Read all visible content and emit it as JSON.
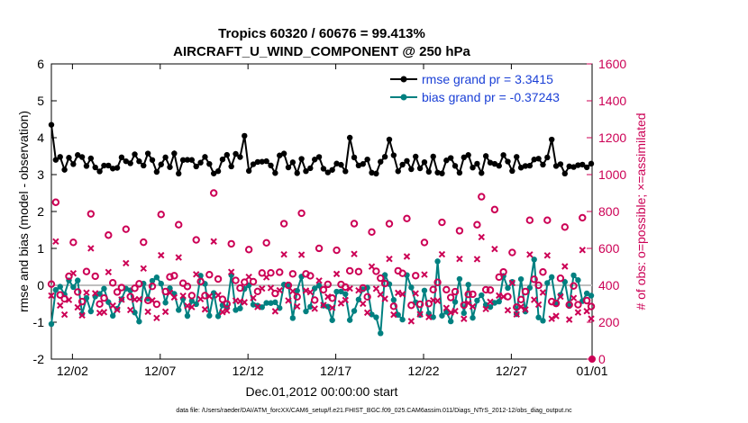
{
  "chart_data": {
    "type": "line",
    "title_line1": "Tropics 60320 / 60676 = 99.413%",
    "title_line2": "AIRCRAFT_U_WIND_COMPONENT @ 250 hPa",
    "xlabel": "Dec.01,2012 00:00:00 start",
    "ylabel_left": "rmse and bias (model - observation)",
    "ylabel_right": "# of obs: o=possible; ×=assimilated",
    "xlim": [
      0.5,
      31.3
    ],
    "ylim_left": [
      -2,
      6
    ],
    "ylim_right": [
      0,
      1600
    ],
    "x_ticks": [
      1.7,
      6.7,
      11.7,
      16.7,
      21.7,
      26.7,
      31.3
    ],
    "x_tick_labels": [
      "12/02",
      "12/07",
      "12/12",
      "12/17",
      "12/22",
      "12/27",
      "01/01"
    ],
    "y_ticks_left": [
      -2,
      -1,
      0,
      1,
      2,
      3,
      4,
      5,
      6
    ],
    "y_tick_labels_left": [
      "-2",
      "-1",
      "0",
      "1",
      "2",
      "3",
      "4",
      "5",
      "6"
    ],
    "y_ticks_right": [
      0,
      200,
      400,
      600,
      800,
      1000,
      1200,
      1400,
      1600
    ],
    "y_tick_labels_right": [
      "0",
      "200",
      "400",
      "600",
      "800",
      "1000",
      "1200",
      "1400",
      "1600"
    ],
    "zero_line": 0,
    "legend_position": "top-right",
    "series": [
      {
        "name": "rmse grand pr = 3.3415",
        "axis": "left",
        "color": "#000000"
      },
      {
        "name": "bias grand pr = -0.37243",
        "axis": "left",
        "color": "#008080"
      },
      {
        "name": "obs possible",
        "axis": "right",
        "color": "#cc0055"
      },
      {
        "name": "obs assimilated",
        "axis": "right",
        "color": "#cc0055"
      }
    ],
    "footnote": "data file: /Users/raeder/DAI/ATM_forcXX/CAM6_setup/f.e21.FHIST_BGC.f09_025.CAM6assim.011/Diags_NTrS_2012-12/obs_diag_output.nc"
  },
  "colors": {
    "rmse": "#000000",
    "bias": "#008080",
    "obs": "#cc0055",
    "zero": "#bfbfbf",
    "legend_text": "#1a3fd6"
  }
}
